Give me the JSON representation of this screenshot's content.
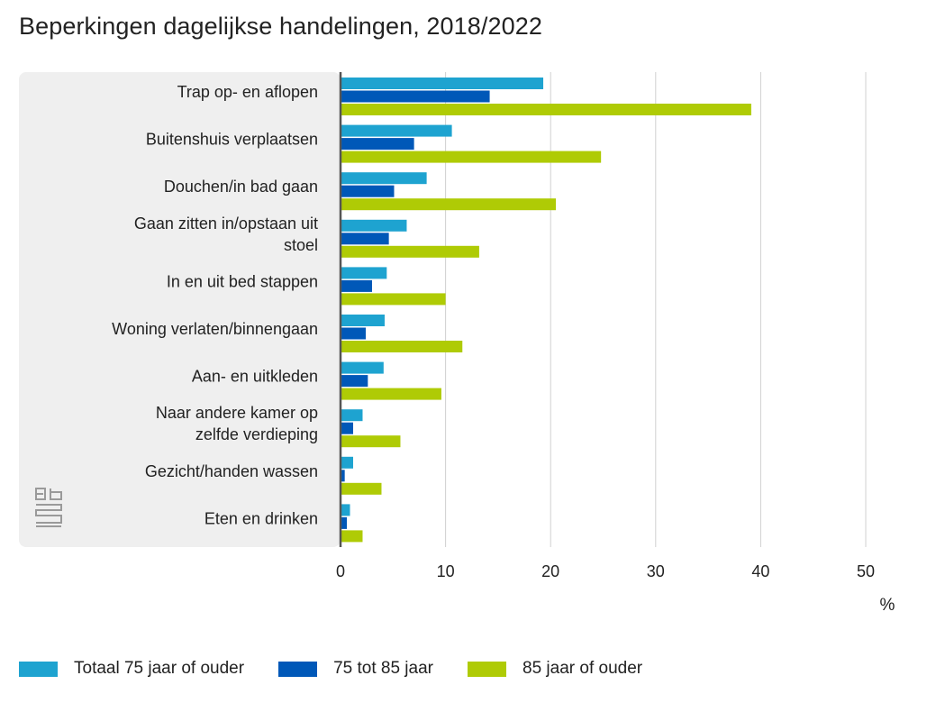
{
  "title": "Beperkingen dagelijkse handelingen, 2018/2022",
  "colors": {
    "panel": "#efefef",
    "grid": "#cfcfcf",
    "axis": "#555555",
    "series": [
      "#1ea3d0",
      "#0058b8",
      "#afcb05"
    ]
  },
  "logo_icon": "cbs-logo-icon",
  "chart_data": {
    "type": "bar",
    "orientation": "horizontal",
    "categories": [
      "Trap op- en aflopen",
      "Buitenshuis verplaatsen",
      "Douchen/in bad gaan",
      "Gaan zitten in/opstaan uit stoel",
      "In en uit bed stappen",
      "Woning verlaten/binnengaan",
      "Aan- en uitkleden",
      "Naar andere kamer op zelfde verdieping",
      "Gezicht/handen wassen",
      "Eten en drinken"
    ],
    "series": [
      {
        "name": "Totaal 75 jaar of ouder",
        "values": [
          19.3,
          10.6,
          8.2,
          6.3,
          4.4,
          4.2,
          4.1,
          2.1,
          1.2,
          0.9
        ]
      },
      {
        "name": "75 tot 85 jaar",
        "values": [
          14.2,
          7.0,
          5.1,
          4.6,
          3.0,
          2.4,
          2.6,
          1.2,
          0.4,
          0.6
        ]
      },
      {
        "name": "85 jaar of ouder",
        "values": [
          39.1,
          24.8,
          20.5,
          13.2,
          10.0,
          11.6,
          9.6,
          5.7,
          3.9,
          2.1
        ]
      }
    ],
    "xlim": [
      0,
      50
    ],
    "xticks": [
      0,
      10,
      20,
      30,
      40,
      50
    ],
    "xlabel": "%",
    "grid": true,
    "legend_position": "bottom"
  }
}
